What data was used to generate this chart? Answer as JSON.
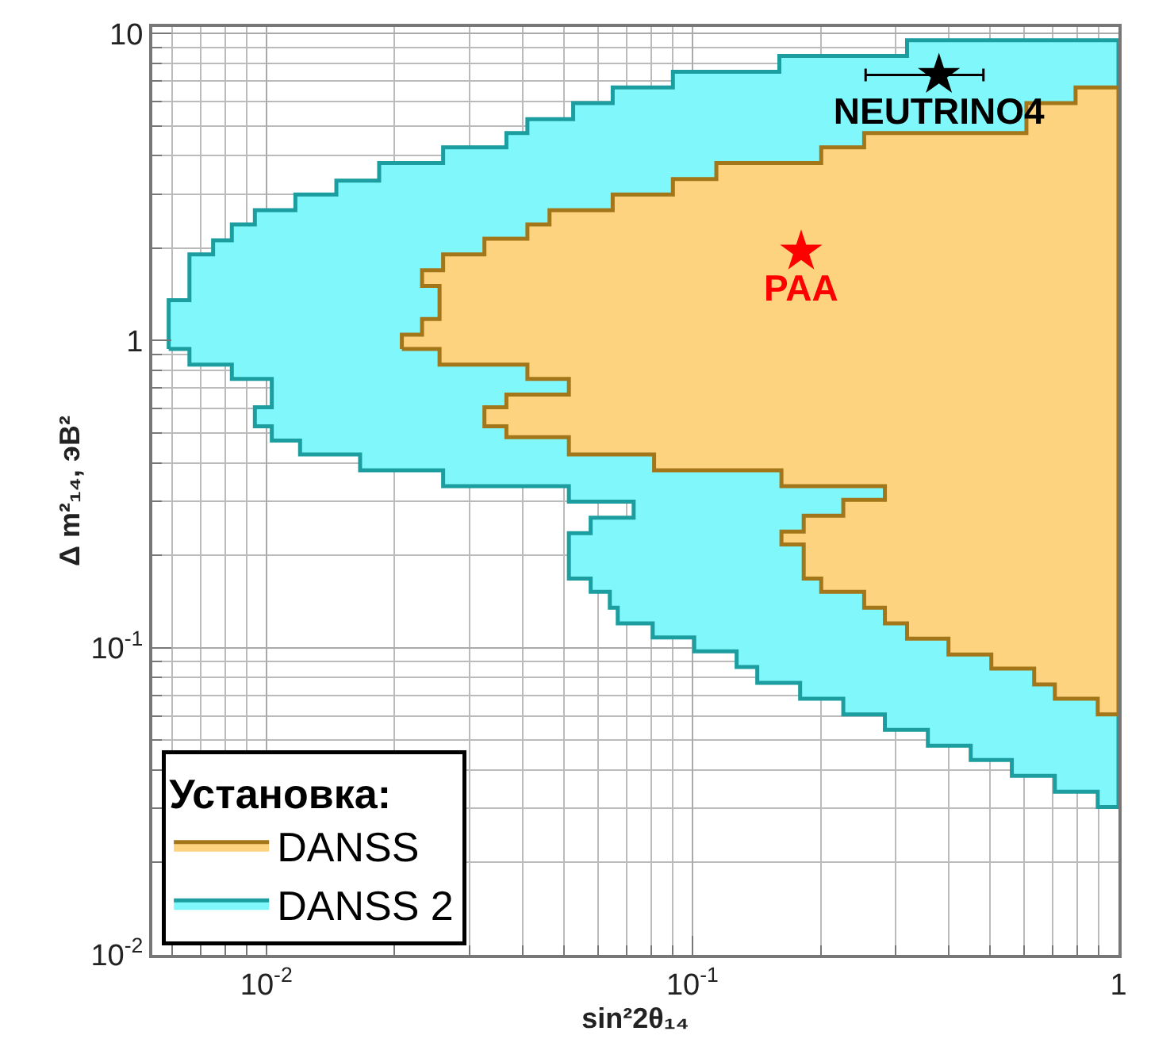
{
  "chart_data": {
    "type": "area",
    "xlabel": "sin²2θ₁₄",
    "ylabel": "Δ m²₁₄, эВ²",
    "legend_title": "Установка:",
    "legend": "bottom left",
    "grid": true,
    "log": "xy",
    "xlim": [
      0.0054,
      1
    ],
    "ylim": [
      0.01,
      10.5
    ],
    "xticks": [
      {
        "value": 0.01,
        "label": "10$^{-2}$"
      },
      {
        "value": 0.1,
        "label": "10$^{-1}$"
      },
      1
    ],
    "yticks": [
      {
        "value": 0.01,
        "label": "10$^{-2}$"
      },
      {
        "value": 0.1,
        "label": "10$^{-1}$"
      },
      1,
      10
    ],
    "series": [
      {
        "name": "DANSS 2",
        "color": "#80f8fb",
        "x": [
          0.0059,
          0.0059,
          0.0066,
          0.0066,
          0.0075,
          0.0075,
          0.0083,
          0.0083,
          0.0094,
          0.0094,
          0.0117,
          0.0117,
          0.0146,
          0.0146,
          0.0184,
          0.0184,
          0.026,
          0.026,
          0.0366,
          0.0366,
          0.041,
          0.041,
          0.0525,
          0.0525,
          0.065,
          0.065,
          0.09,
          0.09,
          0.16,
          0.16,
          0.319,
          0.319,
          1,
          1,
          0.894,
          0.894,
          0.709,
          0.709,
          0.562,
          0.562,
          0.45,
          0.45,
          0.357,
          0.357,
          0.283,
          0.283,
          0.226,
          0.226,
          0.179,
          0.179,
          0.142,
          0.142,
          0.127,
          0.127,
          0.101,
          0.101,
          0.0807,
          0.0807,
          0.0668,
          0.0668,
          0.064,
          0.064,
          0.0577,
          0.0577,
          0.0513,
          0.0513,
          0.0577,
          0.0577,
          0.0728,
          0.0728,
          0.0513,
          0.0513,
          0.026,
          0.026,
          0.0166,
          0.0166,
          0.012,
          0.012,
          0.0103,
          0.0103,
          0.0094,
          0.0094,
          0.0103,
          0.0103,
          0.0083,
          0.0083,
          0.0066,
          0.0066,
          0.0059
        ],
        "values": [
          0.939,
          1.355,
          1.355,
          1.91,
          1.91,
          2.12,
          2.12,
          2.39,
          2.39,
          2.66,
          2.66,
          2.99,
          2.99,
          3.32,
          3.32,
          3.79,
          3.79,
          4.26,
          4.26,
          4.74,
          4.74,
          5.26,
          5.26,
          5.93,
          5.93,
          6.67,
          6.67,
          7.5,
          7.5,
          8.45,
          8.45,
          9.5,
          9.5,
          0.0303,
          0.0303,
          0.034,
          0.034,
          0.0383,
          0.0383,
          0.0431,
          0.0431,
          0.048,
          0.048,
          0.054,
          0.054,
          0.0607,
          0.0607,
          0.0682,
          0.0682,
          0.0769,
          0.0769,
          0.0865,
          0.0865,
          0.0973,
          0.0973,
          0.108,
          0.108,
          0.12,
          0.12,
          0.135,
          0.135,
          0.152,
          0.152,
          0.168,
          0.168,
          0.236,
          0.236,
          0.265,
          0.265,
          0.299,
          0.299,
          0.336,
          0.336,
          0.378,
          0.378,
          0.426,
          0.426,
          0.473,
          0.473,
          0.526,
          0.526,
          0.607,
          0.607,
          0.75,
          0.75,
          0.835,
          0.835,
          0.939,
          0.939
        ]
      },
      {
        "name": "DANSS",
        "color": "#fdd37f",
        "x": [
          0.0208,
          0.0208,
          0.0232,
          0.0232,
          0.0255,
          0.0255,
          0.0232,
          0.0232,
          0.026,
          0.026,
          0.0325,
          0.0325,
          0.041,
          0.041,
          0.0462,
          0.0462,
          0.065,
          0.065,
          0.09,
          0.09,
          0.1138,
          0.1138,
          0.2006,
          0.2006,
          0.253,
          0.253,
          0.608,
          0.608,
          0.793,
          0.793,
          1,
          1,
          0.894,
          0.894,
          0.709,
          0.709,
          0.634,
          0.634,
          0.503,
          0.503,
          0.399,
          0.399,
          0.319,
          0.319,
          0.283,
          0.283,
          0.253,
          0.253,
          0.2006,
          0.2006,
          0.1825,
          0.1825,
          0.1618,
          0.1618,
          0.1825,
          0.1825,
          0.226,
          0.226,
          0.283,
          0.283,
          0.1618,
          0.1618,
          0.0813,
          0.0813,
          0.0513,
          0.0513,
          0.0366,
          0.0366,
          0.0325,
          0.0325,
          0.0366,
          0.0366,
          0.0513,
          0.0513,
          0.041,
          0.041,
          0.0255,
          0.0255,
          0.0208
        ],
        "values": [
          0.939,
          1.045,
          1.045,
          1.176,
          1.176,
          1.506,
          1.506,
          1.695,
          1.695,
          1.91,
          1.91,
          2.148,
          2.148,
          2.39,
          2.39,
          2.66,
          2.66,
          2.99,
          2.99,
          3.36,
          3.36,
          3.79,
          3.79,
          4.26,
          4.26,
          4.74,
          4.74,
          5.93,
          5.93,
          6.67,
          6.67,
          0.0607,
          0.0607,
          0.0682,
          0.0682,
          0.076,
          0.076,
          0.0855,
          0.0855,
          0.095,
          0.095,
          0.107,
          0.107,
          0.12,
          0.12,
          0.135,
          0.135,
          0.152,
          0.152,
          0.168,
          0.168,
          0.217,
          0.217,
          0.239,
          0.239,
          0.269,
          0.269,
          0.303,
          0.303,
          0.336,
          0.336,
          0.378,
          0.378,
          0.426,
          0.426,
          0.485,
          0.485,
          0.526,
          0.526,
          0.607,
          0.607,
          0.667,
          0.667,
          0.75,
          0.75,
          0.835,
          0.835,
          0.939,
          0.939
        ]
      },
      {
        "name": "PAA",
        "type": "scatter",
        "color": "#ff0000",
        "marker": "star",
        "x": [
          0.18
        ],
        "values": [
          1.95
        ]
      },
      {
        "name": "NEUTRINO4",
        "type": "scatter",
        "color": "#000000",
        "marker": "star",
        "x": [
          0.379
        ],
        "values": [
          7.33
        ],
        "xerrors": [
          [
            0.255,
            0.482
          ]
        ]
      }
    ]
  }
}
